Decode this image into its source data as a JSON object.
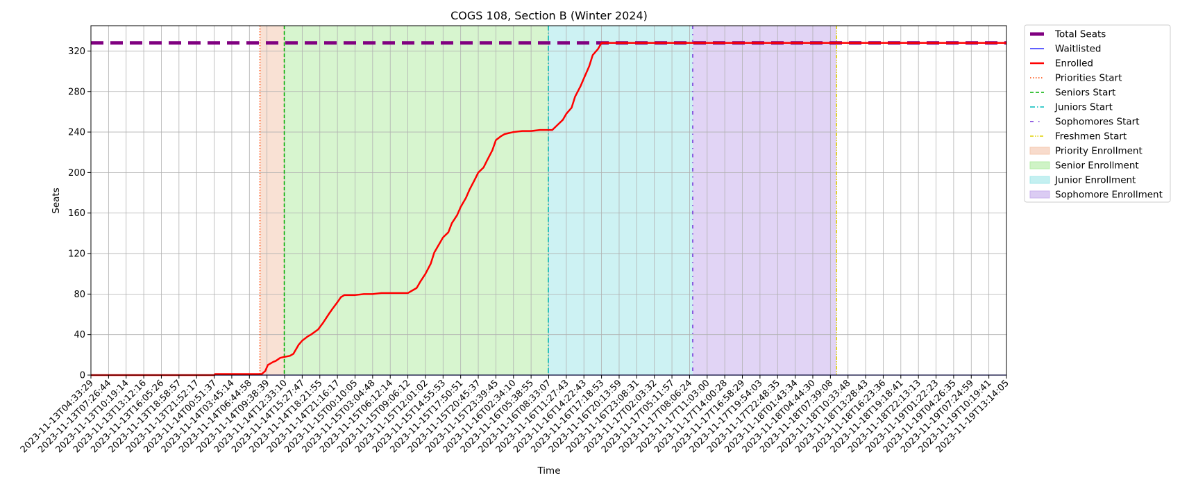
{
  "chart_data": {
    "type": "line",
    "title": "COGS 108, Section B (Winter 2024)",
    "xlabel": "Time",
    "ylabel": "Seats",
    "ylim": [
      0,
      345
    ],
    "yticks": [
      0,
      40,
      80,
      120,
      160,
      200,
      240,
      280,
      320
    ],
    "grid": true,
    "legend_position": "outside-right",
    "x_tick_labels": [
      "2023-11-13T04:33:29",
      "2023-11-13T07:26:44",
      "2023-11-13T10:19:14",
      "2023-11-13T13:12:16",
      "2023-11-13T16:05:26",
      "2023-11-13T18:58:57",
      "2023-11-13T21:52:17",
      "2023-11-14T00:51:37",
      "2023-11-14T03:45:14",
      "2023-11-14T06:44:58",
      "2023-11-14T09:38:39",
      "2023-11-14T12:33:10",
      "2023-11-14T15:27:47",
      "2023-11-14T18:21:55",
      "2023-11-14T21:16:17",
      "2023-11-15T00:10:05",
      "2023-11-15T03:04:48",
      "2023-11-15T06:12:14",
      "2023-11-15T09:06:12",
      "2023-11-15T12:01:02",
      "2023-11-15T14:55:53",
      "2023-11-15T17:50:51",
      "2023-11-15T20:45:37",
      "2023-11-15T23:39:45",
      "2023-11-16T02:34:10",
      "2023-11-16T05:38:55",
      "2023-11-16T08:33:07",
      "2023-11-16T11:27:43",
      "2023-11-16T14:22:43",
      "2023-11-16T17:18:53",
      "2023-11-16T20:13:59",
      "2023-11-16T23:08:31",
      "2023-11-17T02:03:32",
      "2023-11-17T05:11:57",
      "2023-11-17T08:06:24",
      "2023-11-17T11:03:00",
      "2023-11-17T14:00:28",
      "2023-11-17T16:58:29",
      "2023-11-17T19:54:03",
      "2023-11-17T22:48:35",
      "2023-11-18T01:43:34",
      "2023-11-18T04:44:30",
      "2023-11-18T07:39:08",
      "2023-11-18T10:33:48",
      "2023-11-18T13:28:43",
      "2023-11-18T16:23:36",
      "2023-11-18T19:18:41",
      "2023-11-18T22:13:13",
      "2023-11-19T01:22:23",
      "2023-11-19T04:26:35",
      "2023-11-19T07:24:59",
      "2023-11-19T10:19:41",
      "2023-11-19T13:14:05"
    ],
    "series": [
      {
        "name": "Total Seats",
        "color": "#800080",
        "style": "dashed-thick",
        "x": [
          0,
          52
        ],
        "y": [
          328,
          328
        ]
      },
      {
        "name": "Waitlisted",
        "color": "#0000ff",
        "style": "solid-thin",
        "x": [
          0,
          52
        ],
        "y": [
          0,
          0
        ]
      },
      {
        "name": "Enrolled",
        "color": "#ff0000",
        "style": "solid",
        "x": [
          0,
          7.0,
          7.05,
          9.0,
          9.7,
          9.9,
          10.05,
          10.35,
          10.5,
          10.75,
          11.0,
          11.3,
          11.5,
          11.8,
          12.0,
          12.3,
          12.5,
          12.9,
          13.2,
          13.5,
          13.7,
          14.0,
          14.2,
          14.4,
          14.6,
          14.8,
          15.0,
          15.5,
          16.0,
          16.5,
          17.0,
          18.0,
          18.2,
          18.5,
          18.7,
          19.0,
          19.3,
          19.5,
          19.8,
          20.0,
          20.3,
          20.5,
          20.8,
          21.0,
          21.3,
          21.5,
          21.8,
          22.0,
          22.3,
          22.5,
          22.8,
          23.0,
          23.3,
          23.5,
          24.0,
          24.5,
          25.0,
          25.5,
          26.0,
          26.2,
          26.5,
          26.8,
          27.0,
          27.3,
          27.5,
          27.8,
          28.0,
          28.3,
          28.5,
          28.8,
          29.0,
          52.0
        ],
        "y": [
          0,
          0,
          1,
          1,
          1,
          4,
          10,
          13,
          14,
          17,
          18,
          19,
          21,
          30,
          34,
          38,
          40,
          45,
          52,
          60,
          65,
          72,
          77,
          79,
          79,
          79,
          79,
          80,
          80,
          81,
          81,
          81,
          83,
          86,
          92,
          100,
          110,
          121,
          130,
          136,
          141,
          150,
          158,
          166,
          175,
          183,
          193,
          200,
          205,
          212,
          222,
          232,
          236,
          238,
          240,
          241,
          241,
          242,
          242,
          242,
          247,
          252,
          258,
          264,
          275,
          285,
          293,
          305,
          316,
          322,
          328,
          328
        ]
      }
    ],
    "vertical_lines": [
      {
        "name": "Priorities Start",
        "x": 9.6,
        "color": "#ff4500",
        "style": "dotted"
      },
      {
        "name": "Seniors Start",
        "x": 10.98,
        "color": "#00b000",
        "style": "dashed"
      },
      {
        "name": "Juniors Start",
        "x": 25.98,
        "color": "#00bcbc",
        "style": "dashdot"
      },
      {
        "name": "Sophomores Start",
        "x": 34.18,
        "color": "#7030d8",
        "style": "loosely-dashdot"
      },
      {
        "name": "Freshmen Start",
        "x": 42.35,
        "color": "#e0d000",
        "style": "dashdotdot"
      }
    ],
    "shaded_regions": [
      {
        "name": "Priority Enrollment",
        "x0": 9.6,
        "x1": 10.98,
        "color": "#f4c8b0"
      },
      {
        "name": "Senior Enrollment",
        "x0": 10.98,
        "x1": 25.98,
        "color": "#b6eca8"
      },
      {
        "name": "Junior Enrollment",
        "x0": 25.98,
        "x1": 34.18,
        "color": "#a4e8ea"
      },
      {
        "name": "Sophomore Enrollment",
        "x0": 34.18,
        "x1": 42.35,
        "color": "#c8b0ec"
      }
    ]
  },
  "legend": {
    "total_seats": "Total Seats",
    "waitlisted": "Waitlisted",
    "enrolled": "Enrolled",
    "priorities_start": "Priorities Start",
    "seniors_start": "Seniors Start",
    "juniors_start": "Juniors Start",
    "sophomores_start": "Sophomores Start",
    "freshmen_start": "Freshmen Start",
    "priority_enrollment": "Priority Enrollment",
    "senior_enrollment": "Senior Enrollment",
    "junior_enrollment": "Junior Enrollment",
    "sophomore_enrollment": "Sophomore Enrollment"
  }
}
